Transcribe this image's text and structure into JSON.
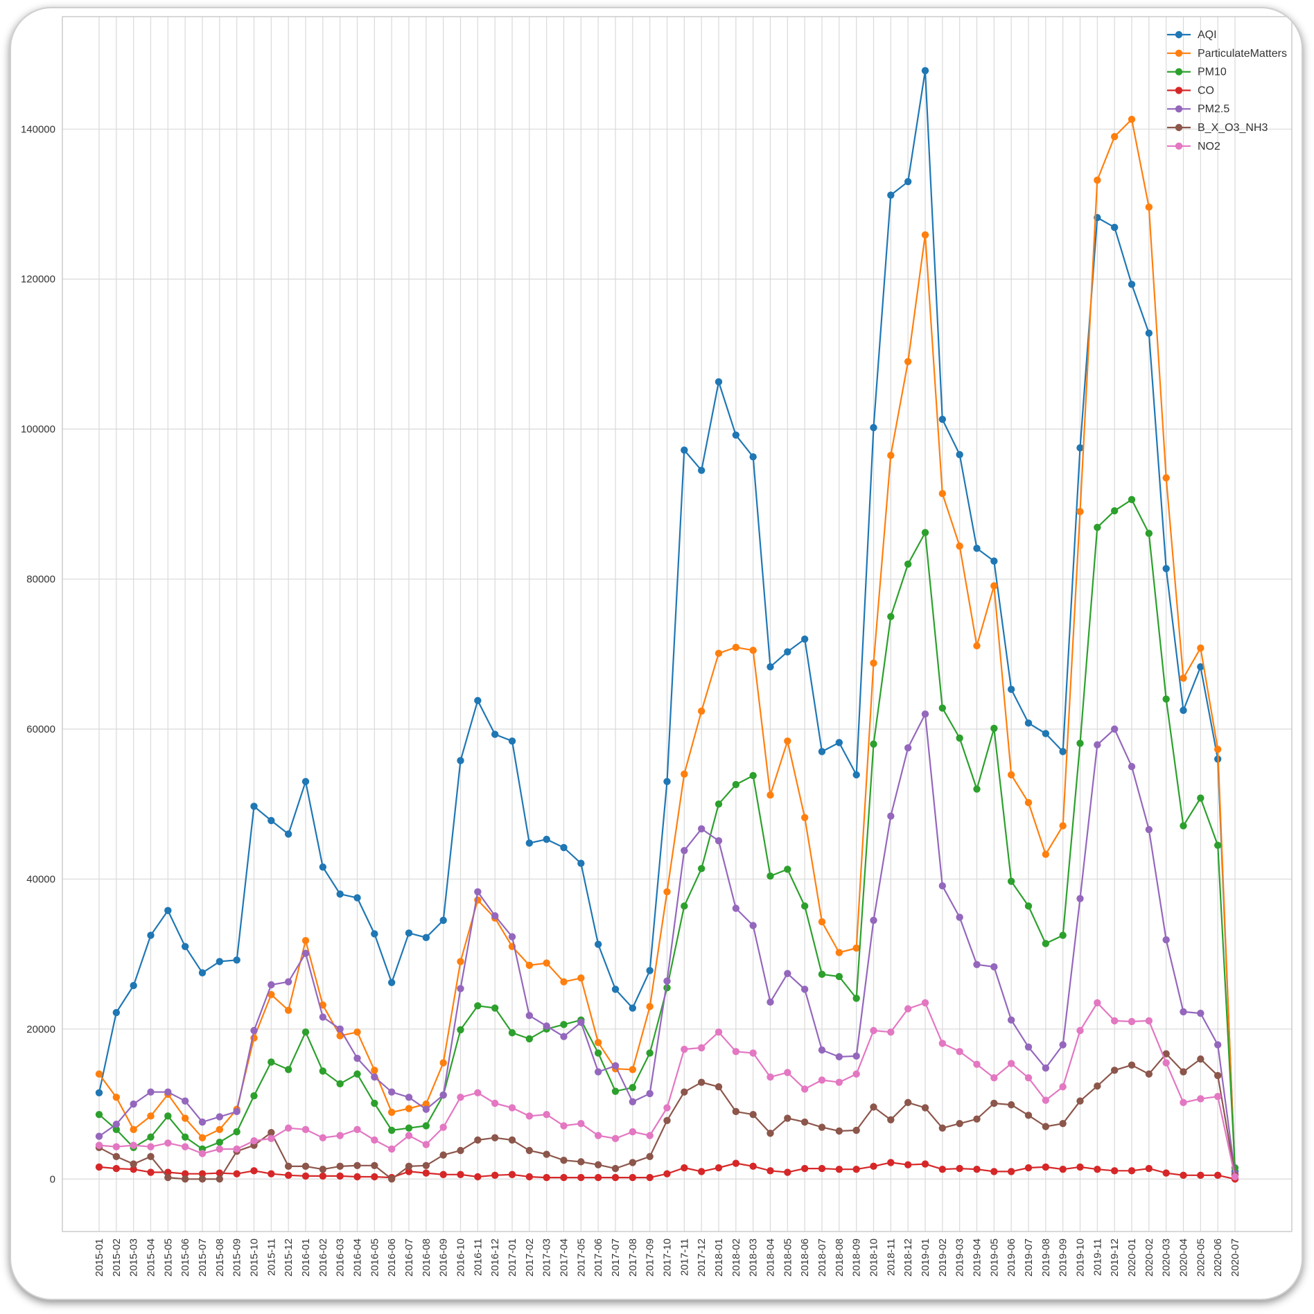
{
  "chart_data": {
    "type": "line",
    "title": "",
    "xlabel": "",
    "ylabel": "",
    "ylim": [
      -7000,
      155000
    ],
    "yticks": [
      0,
      20000,
      40000,
      60000,
      80000,
      100000,
      120000,
      140000
    ],
    "ytick_labels": [
      "0",
      "20000",
      "40000",
      "60000",
      "80000",
      "100000",
      "120000",
      "140000"
    ],
    "grid": true,
    "legend_position": "top-right",
    "categories": [
      "2015-01",
      "2015-02",
      "2015-03",
      "2015-04",
      "2015-05",
      "2015-06",
      "2015-07",
      "2015-08",
      "2015-09",
      "2015-10",
      "2015-11",
      "2015-12",
      "2016-01",
      "2016-02",
      "2016-03",
      "2016-04",
      "2016-05",
      "2016-06",
      "2016-07",
      "2016-08",
      "2016-09",
      "2016-10",
      "2016-11",
      "2016-12",
      "2017-01",
      "2017-02",
      "2017-03",
      "2017-04",
      "2017-05",
      "2017-06",
      "2017-07",
      "2017-08",
      "2017-09",
      "2017-10",
      "2017-11",
      "2017-12",
      "2018-01",
      "2018-02",
      "2018-03",
      "2018-04",
      "2018-05",
      "2018-06",
      "2018-07",
      "2018-08",
      "2018-09",
      "2018-10",
      "2018-11",
      "2018-12",
      "2019-01",
      "2019-02",
      "2019-03",
      "2019-04",
      "2019-05",
      "2019-06",
      "2019-07",
      "2019-08",
      "2019-09",
      "2019-10",
      "2019-11",
      "2019-12",
      "2020-01",
      "2020-02",
      "2020-03",
      "2020-04",
      "2020-05",
      "2020-06",
      "2020-07"
    ],
    "series": [
      {
        "name": "AQI",
        "color": "#1f77b4",
        "values": [
          11500,
          22200,
          25800,
          32500,
          35800,
          31000,
          27500,
          29000,
          29200,
          49700,
          47800,
          46000,
          53000,
          41600,
          38000,
          37500,
          32700,
          26200,
          32800,
          32200,
          34500,
          55800,
          63800,
          59300,
          58400,
          44800,
          45300,
          44200,
          42100,
          31300,
          25300,
          22800,
          27800,
          53000,
          97200,
          94500,
          106300,
          99200,
          96300,
          68300,
          70300,
          72000,
          57000,
          58200,
          53900,
          100200,
          131200,
          133000,
          147800,
          101300,
          96600,
          84100,
          82400,
          65300,
          60800,
          59400,
          57000,
          97500,
          128200,
          126900,
          119300,
          112800,
          81400,
          62500,
          68300,
          56000,
          1000
        ]
      },
      {
        "name": "ParticulateMatters",
        "color": "#ff7f0e",
        "values": [
          14000,
          10900,
          6600,
          8400,
          11300,
          8100,
          5500,
          6600,
          9300,
          18800,
          24600,
          22500,
          31800,
          23200,
          19100,
          19600,
          14500,
          8900,
          9400,
          10000,
          15500,
          29000,
          37200,
          34800,
          31000,
          28500,
          28800,
          26300,
          26800,
          18200,
          14700,
          14600,
          23000,
          38300,
          54000,
          62400,
          70100,
          70900,
          70500,
          51200,
          58400,
          48200,
          34300,
          30200,
          30800,
          68800,
          96500,
          109000,
          125900,
          91400,
          84400,
          71100,
          79100,
          53900,
          50200,
          43300,
          47100,
          89000,
          133200,
          139000,
          141300,
          129600,
          93500,
          66800,
          70800,
          57300,
          500
        ]
      },
      {
        "name": "PM10",
        "color": "#2ca02c",
        "values": [
          8600,
          6600,
          4200,
          5600,
          8400,
          5600,
          4000,
          4900,
          6300,
          11100,
          15600,
          14600,
          19600,
          14400,
          12700,
          14000,
          10100,
          6500,
          6800,
          7100,
          11200,
          19900,
          23100,
          22800,
          19500,
          18700,
          20000,
          20600,
          21200,
          16800,
          11700,
          12200,
          16800,
          25500,
          36400,
          41400,
          50000,
          52600,
          53800,
          40400,
          41300,
          36400,
          27300,
          27000,
          24100,
          58000,
          75000,
          82000,
          86200,
          62800,
          58800,
          52000,
          60100,
          39700,
          36400,
          31400,
          32500,
          58100,
          86900,
          89100,
          90600,
          86100,
          64000,
          47100,
          50800,
          44500,
          1500
        ]
      },
      {
        "name": "CO",
        "color": "#d62728",
        "values": [
          1600,
          1400,
          1300,
          900,
          900,
          700,
          700,
          800,
          700,
          1100,
          700,
          500,
          400,
          400,
          400,
          300,
          300,
          200,
          1000,
          800,
          600,
          600,
          300,
          500,
          600,
          300,
          200,
          200,
          200,
          200,
          200,
          200,
          200,
          700,
          1500,
          1000,
          1500,
          2100,
          1700,
          1100,
          900,
          1400,
          1400,
          1300,
          1300,
          1700,
          2200,
          1900,
          2000,
          1300,
          1400,
          1300,
          1000,
          1000,
          1500,
          1600,
          1300,
          1600,
          1300,
          1100,
          1100,
          1400,
          800,
          500,
          500,
          500,
          0
        ]
      },
      {
        "name": "PM2.5",
        "color": "#9467bd",
        "values": [
          5700,
          7300,
          10000,
          11600,
          11600,
          10400,
          7600,
          8300,
          9000,
          19800,
          25900,
          26300,
          30100,
          21600,
          20000,
          16100,
          13600,
          11600,
          10900,
          9300,
          11200,
          25400,
          38300,
          35100,
          32300,
          21800,
          20400,
          19000,
          20900,
          14300,
          15100,
          10300,
          11400,
          26400,
          43800,
          46700,
          45100,
          36100,
          33800,
          23600,
          27400,
          25300,
          17200,
          16300,
          16400,
          34500,
          48400,
          57500,
          62000,
          39100,
          34900,
          28600,
          28300,
          21200,
          17600,
          14800,
          17900,
          37400,
          57900,
          60000,
          55000,
          46600,
          31900,
          22300,
          22100,
          17900,
          700
        ]
      },
      {
        "name": "B_X_O3_NH3",
        "color": "#8c564b",
        "values": [
          4200,
          3000,
          2000,
          3000,
          200,
          0,
          0,
          0,
          3700,
          4500,
          6200,
          1700,
          1700,
          1300,
          1700,
          1800,
          1800,
          0,
          1700,
          1800,
          3200,
          3800,
          5200,
          5500,
          5200,
          3800,
          3300,
          2500,
          2300,
          1900,
          1400,
          2200,
          3000,
          7800,
          11600,
          12900,
          12300,
          9000,
          8600,
          6100,
          8100,
          7600,
          6900,
          6400,
          6500,
          9600,
          7900,
          10200,
          9500,
          6800,
          7400,
          8000,
          10100,
          9900,
          8500,
          7000,
          7400,
          10400,
          12400,
          14500,
          15200,
          14000,
          16700,
          14300,
          16000,
          13800,
          500
        ]
      },
      {
        "name": "NO2",
        "color": "#e377c2",
        "values": [
          4500,
          4300,
          4500,
          4300,
          4800,
          4300,
          3400,
          4000,
          4000,
          5100,
          5400,
          6800,
          6600,
          5500,
          5800,
          6600,
          5200,
          4000,
          5800,
          4600,
          6900,
          10900,
          11500,
          10100,
          9500,
          8400,
          8600,
          7100,
          7400,
          5800,
          5400,
          6300,
          5800,
          9500,
          17300,
          17500,
          19600,
          17000,
          16800,
          13600,
          14200,
          12000,
          13200,
          12900,
          14000,
          19800,
          19600,
          22700,
          23500,
          18100,
          17000,
          15300,
          13500,
          15400,
          13500,
          10500,
          12300,
          19800,
          23500,
          21100,
          21000,
          21100,
          15500,
          10200,
          10700,
          11000,
          300
        ]
      }
    ]
  }
}
